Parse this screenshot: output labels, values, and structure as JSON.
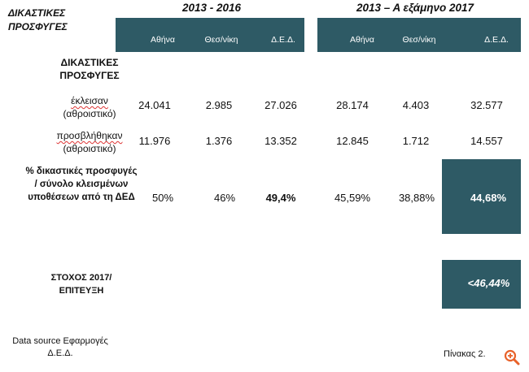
{
  "title": "ΔΙΚΑΣΤΙΚΕΣ ΠΡΟΣΦΥΓΕΣ",
  "periods": [
    "2013 - 2016",
    "2013 – Α εξάμηνο 2017"
  ],
  "columns": [
    "Αθήνα",
    "Θεσ/νίκη",
    "Δ.Ε.Δ.",
    "Αθήνα",
    "Θεσ/νίκη",
    "Δ.Ε.Δ."
  ],
  "section_label": "ΔΙΚΑΣΤΙΚΕΣ ΠΡΟΣΦΥΓΕΣ",
  "rows": [
    {
      "label_main": "έκλεισαν",
      "label_sub": "(αθροιστικό)",
      "values": [
        "24.041",
        "2.985",
        "27.026",
        "28.174",
        "4.403",
        "32.577"
      ]
    },
    {
      "label_main": "προσβλήθηκαν",
      "label_sub": "(αθροιστικό)",
      "values": [
        "11.976",
        "1.376",
        "13.352",
        "12.845",
        "1.712",
        "14.557"
      ]
    }
  ],
  "percent_row": {
    "label": "% δικαστικές προσφυγές / σύνολο κλεισμένων υποθέσεων από τη ΔΕΔ",
    "values": [
      "50%",
      "46%",
      "49,4%",
      "45,59%",
      "38,88%",
      "44,68%"
    ]
  },
  "target_row": {
    "label": "ΣΤΟΧΟΣ 2017/ ΕΠΙΤΕΥΞΗ",
    "value": "<46,44%"
  },
  "footer": {
    "source": "Data source Εφαρμογές Δ.Ε.Δ.",
    "table_no": "Πίνακας 2."
  },
  "colors": {
    "accent": "#2e5a65",
    "brand": "#e8622a"
  }
}
